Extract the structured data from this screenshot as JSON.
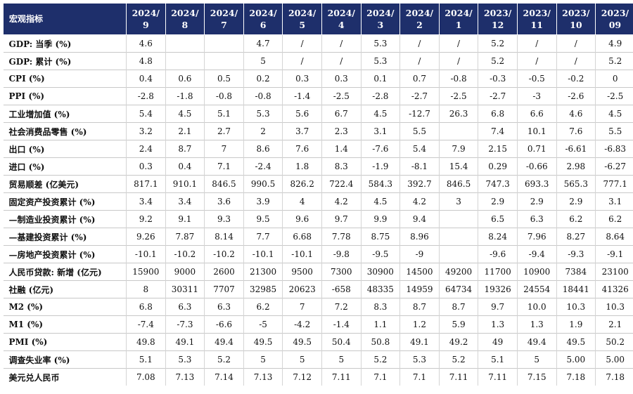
{
  "header": {
    "corner": "宏观指标",
    "periods": [
      {
        "year": "2024/",
        "month": "9"
      },
      {
        "year": "2024/",
        "month": "8"
      },
      {
        "year": "2024/",
        "month": "7"
      },
      {
        "year": "2024/",
        "month": "6"
      },
      {
        "year": "2024/",
        "month": "5"
      },
      {
        "year": "2024/",
        "month": "4"
      },
      {
        "year": "2024/",
        "month": "3"
      },
      {
        "year": "2024/",
        "month": "2"
      },
      {
        "year": "2024/",
        "month": "1"
      },
      {
        "year": "2023/",
        "month": "12"
      },
      {
        "year": "2023/",
        "month": "11"
      },
      {
        "year": "2023/",
        "month": "10"
      },
      {
        "year": "2023/",
        "month": "09"
      }
    ]
  },
  "rows": [
    {
      "label": "GDP: 当季 (%)",
      "values": [
        "4.6",
        "",
        "",
        "4.7",
        "/",
        "/",
        "5.3",
        "/",
        "/",
        "5.2",
        "/",
        "/",
        "4.9"
      ]
    },
    {
      "label": "GDP: 累计 (%)",
      "values": [
        "4.8",
        "",
        "",
        "5",
        "/",
        "/",
        "5.3",
        "/",
        "/",
        "5.2",
        "/",
        "/",
        "5.2"
      ]
    },
    {
      "label": "CPI (%)",
      "values": [
        "0.4",
        "0.6",
        "0.5",
        "0.2",
        "0.3",
        "0.3",
        "0.1",
        "0.7",
        "-0.8",
        "-0.3",
        "-0.5",
        "-0.2",
        "0"
      ]
    },
    {
      "label": "PPI (%)",
      "values": [
        "-2.8",
        "-1.8",
        "-0.8",
        "-0.8",
        "-1.4",
        "-2.5",
        "-2.8",
        "-2.7",
        "-2.5",
        "-2.7",
        "-3",
        "-2.6",
        "-2.5"
      ]
    },
    {
      "label": "工业增加值 (%)",
      "values": [
        "5.4",
        "4.5",
        "5.1",
        "5.3",
        "5.6",
        "6.7",
        "4.5",
        "-12.7",
        "26.3",
        "6.8",
        "6.6",
        "4.6",
        "4.5"
      ]
    },
    {
      "label": "社会消费品零售 (%)",
      "values": [
        "3.2",
        "2.1",
        "2.7",
        "2",
        "3.7",
        "2.3",
        "3.1",
        "5.5",
        "",
        "7.4",
        "10.1",
        "7.6",
        "5.5"
      ]
    },
    {
      "label": "出口 (%)",
      "values": [
        "2.4",
        "8.7",
        "7",
        "8.6",
        "7.6",
        "1.4",
        "-7.6",
        "5.4",
        "7.9",
        "2.15",
        "0.71",
        "-6.61",
        "-6.83"
      ]
    },
    {
      "label": "进口 (%)",
      "values": [
        "0.3",
        "0.4",
        "7.1",
        "-2.4",
        "1.8",
        "8.3",
        "-1.9",
        "-8.1",
        "15.4",
        "0.29",
        "-0.66",
        "2.98",
        "-6.27"
      ]
    },
    {
      "label": "贸易顺差 (亿美元)",
      "values": [
        "817.1",
        "910.1",
        "846.5",
        "990.5",
        "826.2",
        "722.4",
        "584.3",
        "392.7",
        "846.5",
        "747.3",
        "693.3",
        "565.3",
        "777.1"
      ]
    },
    {
      "label": "固定资产投资累计 (%)",
      "values": [
        "3.4",
        "3.4",
        "3.6",
        "3.9",
        "4",
        "4.2",
        "4.5",
        "4.2",
        "3",
        "2.9",
        "2.9",
        "2.9",
        "3.1"
      ]
    },
    {
      "label": "—制造业投资累计 (%)",
      "values": [
        "9.2",
        "9.1",
        "9.3",
        "9.5",
        "9.6",
        "9.7",
        "9.9",
        "9.4",
        "",
        "6.5",
        "6.3",
        "6.2",
        "6.2"
      ]
    },
    {
      "label": "—基建投资累计 (%)",
      "values": [
        "9.26",
        "7.87",
        "8.14",
        "7.7",
        "6.68",
        "7.78",
        "8.75",
        "8.96",
        "",
        "8.24",
        "7.96",
        "8.27",
        "8.64"
      ]
    },
    {
      "label": "—房地产投资累计 (%)",
      "values": [
        "-10.1",
        "-10.2",
        "-10.2",
        "-10.1",
        "-10.1",
        "-9.8",
        "-9.5",
        "-9",
        "",
        "-9.6",
        "-9.4",
        "-9.3",
        "-9.1"
      ]
    },
    {
      "label": "人民币贷款: 新增 (亿元)",
      "values": [
        "15900",
        "9000",
        "2600",
        "21300",
        "9500",
        "7300",
        "30900",
        "14500",
        "49200",
        "11700",
        "10900",
        "7384",
        "23100"
      ]
    },
    {
      "label": "社融 (亿元)",
      "values": [
        "8",
        "30311",
        "7707",
        "32985",
        "20623",
        "-658",
        "48335",
        "14959",
        "64734",
        "19326",
        "24554",
        "18441",
        "41326"
      ]
    },
    {
      "label": "M2 (%)",
      "values": [
        "6.8",
        "6.3",
        "6.3",
        "6.2",
        "7",
        "7.2",
        "8.3",
        "8.7",
        "8.7",
        "9.7",
        "10.0",
        "10.3",
        "10.3"
      ]
    },
    {
      "label": "M1 (%)",
      "values": [
        "-7.4",
        "-7.3",
        "-6.6",
        "-5",
        "-4.2",
        "-1.4",
        "1.1",
        "1.2",
        "5.9",
        "1.3",
        "1.3",
        "1.9",
        "2.1"
      ]
    },
    {
      "label": "PMI (%)",
      "values": [
        "49.8",
        "49.1",
        "49.4",
        "49.5",
        "49.5",
        "50.4",
        "50.8",
        "49.1",
        "49.2",
        "49",
        "49.4",
        "49.5",
        "50.2"
      ]
    },
    {
      "label": "调查失业率 (%)",
      "values": [
        "5.1",
        "5.3",
        "5.2",
        "5",
        "5",
        "5",
        "5.2",
        "5.3",
        "5.2",
        "5.1",
        "5",
        "5.00",
        "5.00"
      ]
    },
    {
      "label": "美元兑人民币",
      "values": [
        "7.08",
        "7.13",
        "7.14",
        "7.13",
        "7.12",
        "7.11",
        "7.1",
        "7.1",
        "7.11",
        "7.11",
        "7.15",
        "7.18",
        "7.18"
      ]
    }
  ]
}
